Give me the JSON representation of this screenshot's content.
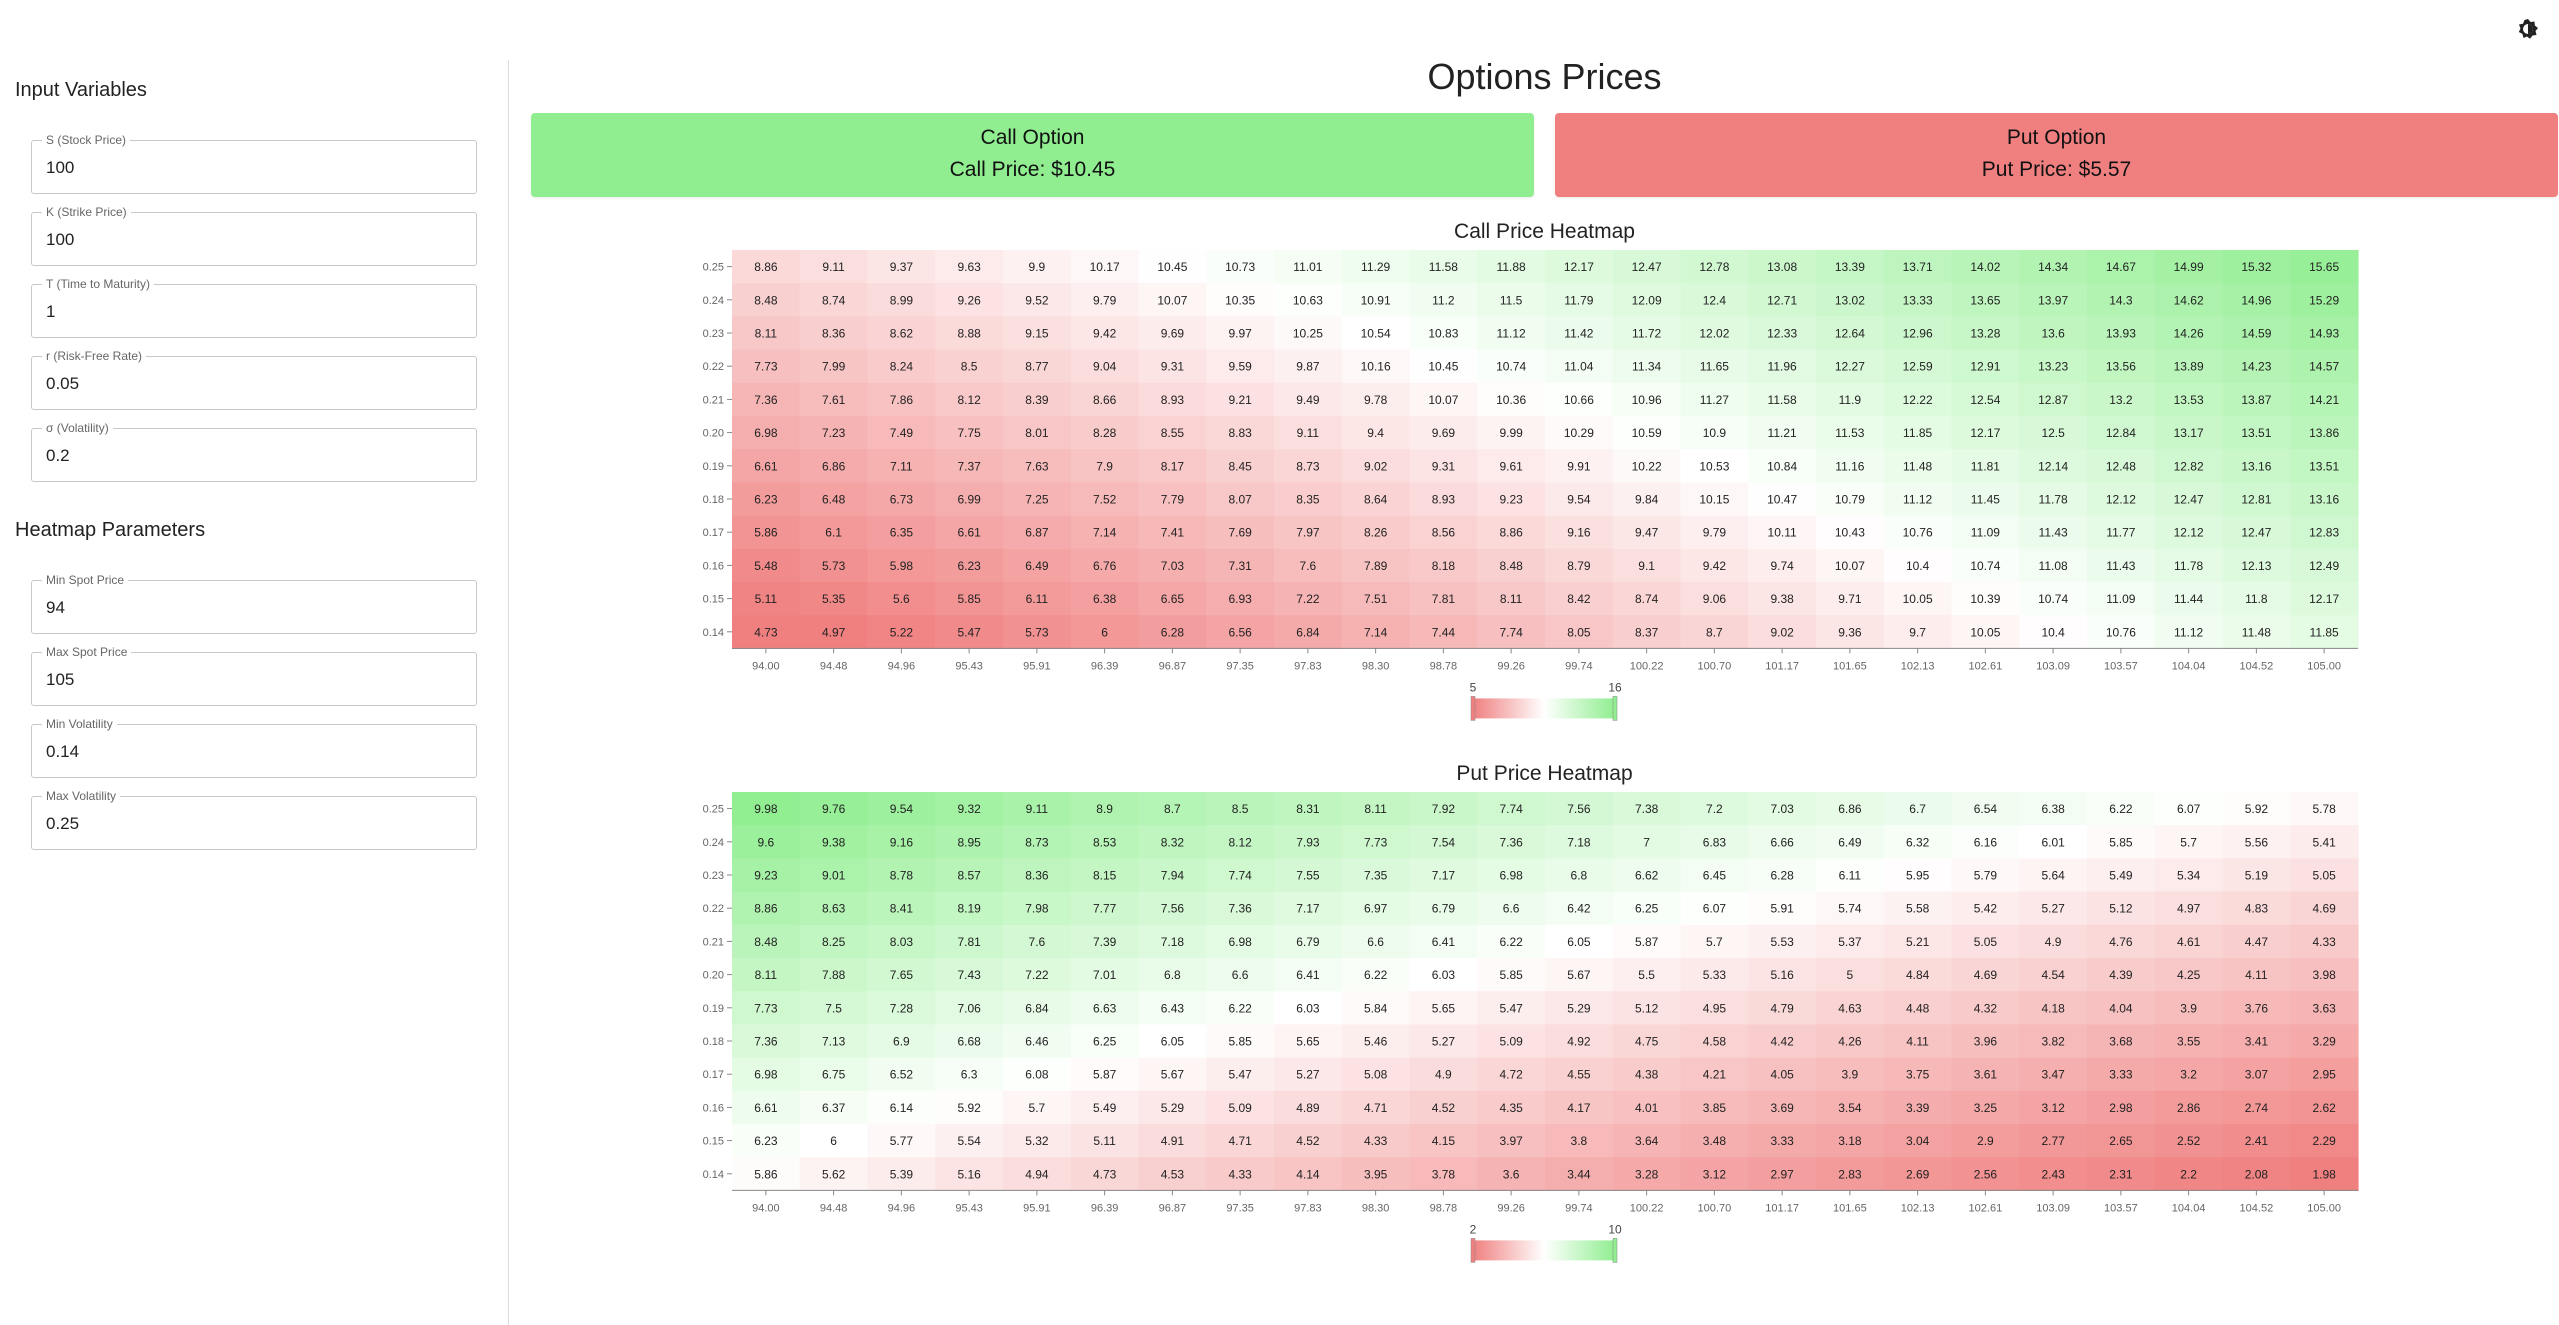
{
  "theme_toggle": {
    "icon": "brightness-icon"
  },
  "sidebar": {
    "input_title": "Input Variables",
    "inputs": [
      {
        "label": "S (Stock Price)",
        "value": "100"
      },
      {
        "label": "K (Strike Price)",
        "value": "100"
      },
      {
        "label": "T (Time to Maturity)",
        "value": "1"
      },
      {
        "label": "r (Risk-Free Rate)",
        "value": "0.05"
      },
      {
        "label": "σ (Volatility)",
        "value": "0.2"
      }
    ],
    "heatmap_title": "Heatmap Parameters",
    "heatmap_inputs": [
      {
        "label": "Min Spot Price",
        "value": "94"
      },
      {
        "label": "Max Spot Price",
        "value": "105"
      },
      {
        "label": "Min Volatility",
        "value": "0.14"
      },
      {
        "label": "Max Volatility",
        "value": "0.25"
      }
    ]
  },
  "main": {
    "title": "Options Prices",
    "call_card": {
      "title": "Call Option",
      "price": "Call Price: $10.45",
      "color": "#90ee90"
    },
    "put_card": {
      "title": "Put Option",
      "price": "Put Price: $5.57",
      "color": "#f08080"
    }
  },
  "colors": {
    "low": "#f08080",
    "mid": "#ffffff",
    "high": "#90ee90"
  },
  "chart_data": [
    {
      "type": "heatmap",
      "title": "Call Price Heatmap",
      "x": [
        "94.00",
        "94.48",
        "94.96",
        "95.43",
        "95.91",
        "96.39",
        "96.87",
        "97.35",
        "97.83",
        "98.30",
        "98.78",
        "99.26",
        "99.74",
        "100.22",
        "100.70",
        "101.17",
        "101.65",
        "102.13",
        "102.61",
        "103.09",
        "103.57",
        "104.04",
        "104.52",
        "105.00"
      ],
      "y": [
        "0.25",
        "0.24",
        "0.23",
        "0.22",
        "0.21",
        "0.20",
        "0.19",
        "0.18",
        "0.17",
        "0.16",
        "0.15",
        "0.14"
      ],
      "values": [
        [
          8.86,
          9.11,
          9.37,
          9.63,
          9.9,
          10.17,
          10.45,
          10.73,
          11.01,
          11.29,
          11.58,
          11.88,
          12.17,
          12.47,
          12.78,
          13.08,
          13.39,
          13.71,
          14.02,
          14.34,
          14.67,
          14.99,
          15.32,
          15.65
        ],
        [
          8.48,
          8.74,
          8.99,
          9.26,
          9.52,
          9.79,
          10.07,
          10.35,
          10.63,
          10.91,
          11.2,
          11.5,
          11.79,
          12.09,
          12.4,
          12.71,
          13.02,
          13.33,
          13.65,
          13.97,
          14.3,
          14.62,
          14.96,
          15.29
        ],
        [
          8.11,
          8.36,
          8.62,
          8.88,
          9.15,
          9.42,
          9.69,
          9.97,
          10.25,
          10.54,
          10.83,
          11.12,
          11.42,
          11.72,
          12.02,
          12.33,
          12.64,
          12.96,
          13.28,
          13.6,
          13.93,
          14.26,
          14.59,
          14.93
        ],
        [
          7.73,
          7.99,
          8.24,
          8.5,
          8.77,
          9.04,
          9.31,
          9.59,
          9.87,
          10.16,
          10.45,
          10.74,
          11.04,
          11.34,
          11.65,
          11.96,
          12.27,
          12.59,
          12.91,
          13.23,
          13.56,
          13.89,
          14.23,
          14.57
        ],
        [
          7.36,
          7.61,
          7.86,
          8.12,
          8.39,
          8.66,
          8.93,
          9.21,
          9.49,
          9.78,
          10.07,
          10.36,
          10.66,
          10.96,
          11.27,
          11.58,
          11.9,
          12.22,
          12.54,
          12.87,
          13.2,
          13.53,
          13.87,
          14.21
        ],
        [
          6.98,
          7.23,
          7.49,
          7.75,
          8.01,
          8.28,
          8.55,
          8.83,
          9.11,
          9.4,
          9.69,
          9.99,
          10.29,
          10.59,
          10.9,
          11.21,
          11.53,
          11.85,
          12.17,
          12.5,
          12.84,
          13.17,
          13.51,
          13.86
        ],
        [
          6.61,
          6.86,
          7.11,
          7.37,
          7.63,
          7.9,
          8.17,
          8.45,
          8.73,
          9.02,
          9.31,
          9.61,
          9.91,
          10.22,
          10.53,
          10.84,
          11.16,
          11.48,
          11.81,
          12.14,
          12.48,
          12.82,
          13.16,
          13.51
        ],
        [
          6.23,
          6.48,
          6.73,
          6.99,
          7.25,
          7.52,
          7.79,
          8.07,
          8.35,
          8.64,
          8.93,
          9.23,
          9.54,
          9.84,
          10.15,
          10.47,
          10.79,
          11.12,
          11.45,
          11.78,
          12.12,
          12.47,
          12.81,
          13.16
        ],
        [
          5.86,
          6.1,
          6.35,
          6.61,
          6.87,
          7.14,
          7.41,
          7.69,
          7.97,
          8.26,
          8.56,
          8.86,
          9.16,
          9.47,
          9.79,
          10.11,
          10.43,
          10.76,
          11.09,
          11.43,
          11.77,
          12.12,
          12.47,
          12.83
        ],
        [
          5.48,
          5.73,
          5.98,
          6.23,
          6.49,
          6.76,
          7.03,
          7.31,
          7.6,
          7.89,
          8.18,
          8.48,
          8.79,
          9.1,
          9.42,
          9.74,
          10.07,
          10.4,
          10.74,
          11.08,
          11.43,
          11.78,
          12.13,
          12.49
        ],
        [
          5.11,
          5.35,
          5.6,
          5.85,
          6.11,
          6.38,
          6.65,
          6.93,
          7.22,
          7.51,
          7.81,
          8.11,
          8.42,
          8.74,
          9.06,
          9.38,
          9.71,
          10.05,
          10.39,
          10.74,
          11.09,
          11.44,
          11.8,
          12.17
        ],
        [
          4.73,
          4.97,
          5.22,
          5.47,
          5.73,
          6,
          6.28,
          6.56,
          6.84,
          7.14,
          7.44,
          7.74,
          8.05,
          8.37,
          8.7,
          9.02,
          9.36,
          9.7,
          10.05,
          10.4,
          10.76,
          11.12,
          11.48,
          11.85
        ]
      ],
      "colorbar": {
        "min": 5,
        "max": 16,
        "min_label": "5",
        "max_label": "16"
      }
    },
    {
      "type": "heatmap",
      "title": "Put Price Heatmap",
      "x": [
        "94.00",
        "94.48",
        "94.96",
        "95.43",
        "95.91",
        "96.39",
        "96.87",
        "97.35",
        "97.83",
        "98.30",
        "98.78",
        "99.26",
        "99.74",
        "100.22",
        "100.70",
        "101.17",
        "101.65",
        "102.13",
        "102.61",
        "103.09",
        "103.57",
        "104.04",
        "104.52",
        "105.00"
      ],
      "y": [
        "0.25",
        "0.24",
        "0.23",
        "0.22",
        "0.21",
        "0.20",
        "0.19",
        "0.18",
        "0.17",
        "0.16",
        "0.15",
        "0.14"
      ],
      "values": [
        [
          9.98,
          9.76,
          9.54,
          9.32,
          9.11,
          8.9,
          8.7,
          8.5,
          8.31,
          8.11,
          7.92,
          7.74,
          7.56,
          7.38,
          7.2,
          7.03,
          6.86,
          6.7,
          6.54,
          6.38,
          6.22,
          6.07,
          5.92,
          5.78
        ],
        [
          9.6,
          9.38,
          9.16,
          8.95,
          8.73,
          8.53,
          8.32,
          8.12,
          7.93,
          7.73,
          7.54,
          7.36,
          7.18,
          7,
          6.83,
          6.66,
          6.49,
          6.32,
          6.16,
          6.01,
          5.85,
          5.7,
          5.56,
          5.41
        ],
        [
          9.23,
          9.01,
          8.78,
          8.57,
          8.36,
          8.15,
          7.94,
          7.74,
          7.55,
          7.35,
          7.17,
          6.98,
          6.8,
          6.62,
          6.45,
          6.28,
          6.11,
          5.95,
          5.79,
          5.64,
          5.49,
          5.34,
          5.19,
          5.05
        ],
        [
          8.86,
          8.63,
          8.41,
          8.19,
          7.98,
          7.77,
          7.56,
          7.36,
          7.17,
          6.97,
          6.79,
          6.6,
          6.42,
          6.25,
          6.07,
          5.91,
          5.74,
          5.58,
          5.42,
          5.27,
          5.12,
          4.97,
          4.83,
          4.69
        ],
        [
          8.48,
          8.25,
          8.03,
          7.81,
          7.6,
          7.39,
          7.18,
          6.98,
          6.79,
          6.6,
          6.41,
          6.22,
          6.05,
          5.87,
          5.7,
          5.53,
          5.37,
          5.21,
          5.05,
          4.9,
          4.76,
          4.61,
          4.47,
          4.33
        ],
        [
          8.11,
          7.88,
          7.65,
          7.43,
          7.22,
          7.01,
          6.8,
          6.6,
          6.41,
          6.22,
          6.03,
          5.85,
          5.67,
          5.5,
          5.33,
          5.16,
          5,
          4.84,
          4.69,
          4.54,
          4.39,
          4.25,
          4.11,
          3.98
        ],
        [
          7.73,
          7.5,
          7.28,
          7.06,
          6.84,
          6.63,
          6.43,
          6.22,
          6.03,
          5.84,
          5.65,
          5.47,
          5.29,
          5.12,
          4.95,
          4.79,
          4.63,
          4.48,
          4.32,
          4.18,
          4.04,
          3.9,
          3.76,
          3.63
        ],
        [
          7.36,
          7.13,
          6.9,
          6.68,
          6.46,
          6.25,
          6.05,
          5.85,
          5.65,
          5.46,
          5.27,
          5.09,
          4.92,
          4.75,
          4.58,
          4.42,
          4.26,
          4.11,
          3.96,
          3.82,
          3.68,
          3.55,
          3.41,
          3.29
        ],
        [
          6.98,
          6.75,
          6.52,
          6.3,
          6.08,
          5.87,
          5.67,
          5.47,
          5.27,
          5.08,
          4.9,
          4.72,
          4.55,
          4.38,
          4.21,
          4.05,
          3.9,
          3.75,
          3.61,
          3.47,
          3.33,
          3.2,
          3.07,
          2.95
        ],
        [
          6.61,
          6.37,
          6.14,
          5.92,
          5.7,
          5.49,
          5.29,
          5.09,
          4.89,
          4.71,
          4.52,
          4.35,
          4.17,
          4.01,
          3.85,
          3.69,
          3.54,
          3.39,
          3.25,
          3.12,
          2.98,
          2.86,
          2.74,
          2.62
        ],
        [
          6.23,
          6,
          5.77,
          5.54,
          5.32,
          5.11,
          4.91,
          4.71,
          4.52,
          4.33,
          4.15,
          3.97,
          3.8,
          3.64,
          3.48,
          3.33,
          3.18,
          3.04,
          2.9,
          2.77,
          2.65,
          2.52,
          2.41,
          2.29
        ],
        [
          5.86,
          5.62,
          5.39,
          5.16,
          4.94,
          4.73,
          4.53,
          4.33,
          4.14,
          3.95,
          3.78,
          3.6,
          3.44,
          3.28,
          3.12,
          2.97,
          2.83,
          2.69,
          2.56,
          2.43,
          2.31,
          2.2,
          2.08,
          1.98
        ]
      ],
      "colorbar": {
        "min": 2,
        "max": 10,
        "min_label": "2",
        "max_label": "10"
      }
    }
  ]
}
